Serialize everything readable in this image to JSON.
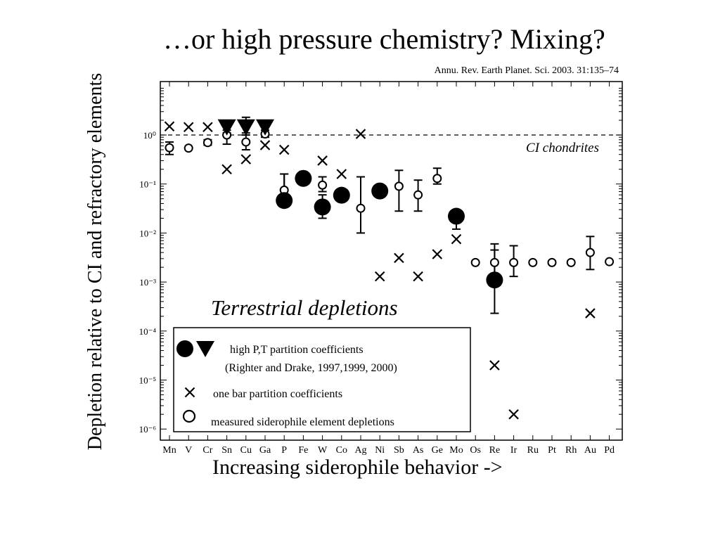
{
  "slide": {
    "title": "…or high pressure chemistry? Mixing?",
    "citation": "Annu. Rev. Earth Planet. Sci. 2003. 31:135–74",
    "ylabel": "Depletion relative to CI and refractory elements",
    "xlabel": "Increasing siderophile behavior ->"
  },
  "chart_data": {
    "type": "scatter",
    "title": "",
    "xlabel": "Increasing siderophile behavior ->",
    "ylabel": "Depletion relative to CI and refractory elements",
    "yscale": "log",
    "ylim": [
      1e-06,
      10.0
    ],
    "categories": [
      "Mn",
      "V",
      "Cr",
      "Sn",
      "Cu",
      "Ga",
      "P",
      "Fe",
      "W",
      "Co",
      "Ag",
      "Ni",
      "Sb",
      "As",
      "Ge",
      "Mo",
      "Os",
      "Re",
      "Ir",
      "Ru",
      "Pt",
      "Rh",
      "Au",
      "Pd"
    ],
    "y_tick_labels": [
      "10⁻⁶",
      "10⁻⁵",
      "10⁻⁴",
      "10⁻³",
      "10⁻²",
      "10⁻¹",
      "10⁰"
    ],
    "reference_line": {
      "value": 1,
      "label": "CI chondrites",
      "style": "dashed"
    },
    "annotation": "Terrestrial depletions",
    "series": [
      {
        "name": "high P,T partition coefficients",
        "marker": "filled-circle",
        "points": [
          {
            "x": "P",
            "y": 0.046,
            "lo": 0.035,
            "hi": 0.16
          },
          {
            "x": "Fe",
            "y": 0.13,
            "lo": 0.1,
            "hi": 0.18
          },
          {
            "x": "W",
            "y": 0.034,
            "lo": 0.02,
            "hi": 0.06
          },
          {
            "x": "Co",
            "y": 0.059,
            "lo": 0.045,
            "hi": 0.08
          },
          {
            "x": "Ni",
            "y": 0.072,
            "lo": 0.055,
            "hi": 0.09
          },
          {
            "x": "Mo",
            "y": 0.022,
            "lo": 0.012,
            "hi": 0.03
          },
          {
            "x": "Re",
            "y": 0.0011,
            "lo": 0.00023,
            "hi": 0.006
          }
        ]
      },
      {
        "name": "high P,T partition coefficients (triangles)",
        "marker": "filled-triangle-down",
        "points": [
          {
            "x": "Sn",
            "y": 1.45,
            "lo": 1.1,
            "hi": 1.9
          },
          {
            "x": "Cu",
            "y": 1.45,
            "lo": 1.1,
            "hi": 2.3
          },
          {
            "x": "Ga",
            "y": 1.45,
            "lo": 1.1,
            "hi": 1.9
          }
        ]
      },
      {
        "name": "one bar partition coefficients",
        "marker": "x",
        "points": [
          {
            "x": "Mn",
            "y": 1.5
          },
          {
            "x": "V",
            "y": 1.45
          },
          {
            "x": "Cr",
            "y": 1.45
          },
          {
            "x": "Sn",
            "y": 0.2
          },
          {
            "x": "Cu",
            "y": 0.32
          },
          {
            "x": "Ga",
            "y": 0.62
          },
          {
            "x": "P",
            "y": 0.5
          },
          {
            "x": "W",
            "y": 0.3
          },
          {
            "x": "Co",
            "y": 0.16
          },
          {
            "x": "Ag",
            "y": 1.05
          },
          {
            "x": "Ni",
            "y": 0.0013
          },
          {
            "x": "Sb",
            "y": 0.0031
          },
          {
            "x": "As",
            "y": 0.0013
          },
          {
            "x": "Ge",
            "y": 0.0037
          },
          {
            "x": "Mo",
            "y": 0.0075
          },
          {
            "x": "Re",
            "y": 2e-05
          },
          {
            "x": "Ir",
            "y": 2e-06
          },
          {
            "x": "Au",
            "y": 0.00023
          }
        ]
      },
      {
        "name": "measured siderophile element depletions",
        "marker": "open-circle",
        "points": [
          {
            "x": "Mn",
            "y": 0.55,
            "lo": 0.4,
            "hi": 0.72
          },
          {
            "x": "V",
            "y": 0.54
          },
          {
            "x": "Cr",
            "y": 0.7,
            "lo": 0.62,
            "hi": 0.8
          },
          {
            "x": "Sn",
            "y": 1.0,
            "lo": 0.65,
            "hi": 1.25
          },
          {
            "x": "Cu",
            "y": 0.72,
            "lo": 0.5,
            "hi": 1.0
          },
          {
            "x": "Ga",
            "y": 1.05,
            "lo": 0.9,
            "hi": 1.25
          },
          {
            "x": "P",
            "y": 0.075,
            "lo": 0.04,
            "hi": 0.16
          },
          {
            "x": "W",
            "y": 0.095,
            "lo": 0.07,
            "hi": 0.14
          },
          {
            "x": "Ag",
            "y": 0.032,
            "lo": 0.01,
            "hi": 0.14
          },
          {
            "x": "Sb",
            "y": 0.09,
            "lo": 0.028,
            "hi": 0.19
          },
          {
            "x": "As",
            "y": 0.06,
            "lo": 0.028,
            "hi": 0.12
          },
          {
            "x": "Ge",
            "y": 0.13,
            "lo": 0.1,
            "hi": 0.21
          },
          {
            "x": "Os",
            "y": 0.0025
          },
          {
            "x": "Re",
            "y": 0.0025,
            "lo": 0.0013,
            "hi": 0.0045
          },
          {
            "x": "Ir",
            "y": 0.0025,
            "lo": 0.0013,
            "hi": 0.0055
          },
          {
            "x": "Ru",
            "y": 0.0025
          },
          {
            "x": "Pt",
            "y": 0.0025
          },
          {
            "x": "Rh",
            "y": 0.0025
          },
          {
            "x": "Au",
            "y": 0.004,
            "lo": 0.0018,
            "hi": 0.0085
          },
          {
            "x": "Pd",
            "y": 0.0026
          }
        ]
      }
    ],
    "legend": {
      "placement": "bottom-left",
      "entries": [
        {
          "markers": [
            "filled-circle",
            "filled-triangle-down"
          ],
          "text": "high P,T partition coefficients",
          "subtext": "(Righter and Drake, 1997,1999, 2000)"
        },
        {
          "markers": [
            "x"
          ],
          "text": "one bar partition coefficients"
        },
        {
          "markers": [
            "open-circle"
          ],
          "text": "measured siderophile element depletions"
        }
      ]
    }
  }
}
